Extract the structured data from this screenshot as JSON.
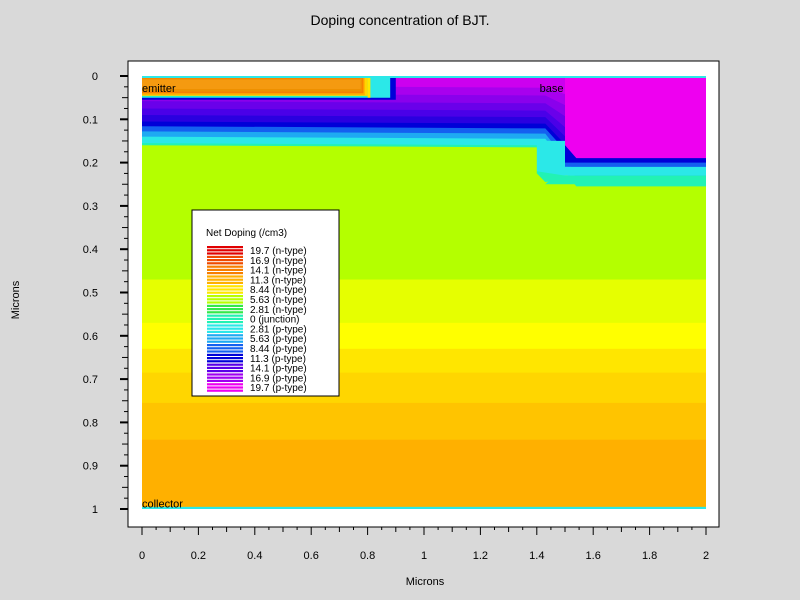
{
  "chart_data": {
    "type": "heatmap",
    "title": "Doping concentration of BJT.",
    "xlabel": "Microns",
    "ylabel": "Microns",
    "xlim": [
      0,
      2
    ],
    "ylim": [
      0,
      1
    ],
    "y_inverted": true,
    "x_ticks": [
      "0",
      "0.2",
      "0.4",
      "0.6",
      "0.8",
      "1",
      "1.2",
      "1.4",
      "1.6",
      "1.8",
      "2"
    ],
    "y_ticks": [
      "0",
      "0.1",
      "0.2",
      "0.3",
      "0.4",
      "0.5",
      "0.6",
      "0.7",
      "0.8",
      "0.9",
      "1"
    ],
    "region_labels": [
      {
        "text": "emitter",
        "x": 0.0,
        "y": 0.03
      },
      {
        "text": "base",
        "x": 1.41,
        "y": 0.03
      },
      {
        "text": "collector",
        "x": 0.0,
        "y": 0.99
      }
    ],
    "legend": {
      "title": "Net Doping (/cm3)",
      "entries": [
        {
          "label": "19.7 (n-type)",
          "color": "#e00000"
        },
        {
          "label": "16.9 (n-type)",
          "color": "#ee4a00"
        },
        {
          "label": "14.1 (n-type)",
          "color": "#f77f00"
        },
        {
          "label": "11.3 (n-type)",
          "color": "#ffb000"
        },
        {
          "label": "8.44 (n-type)",
          "color": "#ffe600"
        },
        {
          "label": "5.63 (n-type)",
          "color": "#b8ff00"
        },
        {
          "label": "2.81 (n-type)",
          "color": "#33e84a"
        },
        {
          "label": "0 (junction)",
          "color": "#22f2b4"
        },
        {
          "label": "2.81 (p-type)",
          "color": "#2be8e8"
        },
        {
          "label": "5.63 (p-type)",
          "color": "#1eaaf2"
        },
        {
          "label": "8.44 (p-type)",
          "color": "#1460f0"
        },
        {
          "label": "11.3 (p-type)",
          "color": "#0000d8"
        },
        {
          "label": "14.1 (p-type)",
          "color": "#5a00e8"
        },
        {
          "label": "16.9 (p-type)",
          "color": "#a000f0"
        },
        {
          "label": "19.7 (p-type)",
          "color": "#ee00f0"
        }
      ]
    },
    "regions": [
      {
        "name": "collector-bulk-low",
        "color": "#ffb000",
        "x": [
          0,
          2
        ],
        "y": [
          0.25,
          1
        ]
      },
      {
        "name": "collector-band-1",
        "color": "#ffc400",
        "x": [
          0,
          2
        ],
        "y": [
          0.25,
          0.84
        ]
      },
      {
        "name": "collector-band-2",
        "color": "#ffd600",
        "x": [
          0,
          2
        ],
        "y": [
          0.25,
          0.755
        ]
      },
      {
        "name": "collector-band-3",
        "color": "#ffe600",
        "x": [
          0,
          2
        ],
        "y": [
          0.25,
          0.685
        ]
      },
      {
        "name": "collector-band-4",
        "color": "#ffff00",
        "x": [
          0,
          2
        ],
        "y": [
          0.25,
          0.63
        ]
      },
      {
        "name": "collector-band-5",
        "color": "#e6ff00",
        "x": [
          0,
          2
        ],
        "y": [
          0.25,
          0.57
        ]
      },
      {
        "name": "collector-band-6",
        "color": "#ccff00",
        "x": [
          0,
          2
        ],
        "y": [
          0.25,
          0.47
        ]
      },
      {
        "name": "collector-epi",
        "color": "#b4ff00",
        "x": [
          0,
          2
        ],
        "y": [
          0.15,
          0.47
        ]
      },
      {
        "name": "collector-bottom-junction",
        "color": "#2be8e8",
        "x": [
          0,
          2
        ],
        "y": [
          0.995,
          1
        ]
      }
    ]
  }
}
